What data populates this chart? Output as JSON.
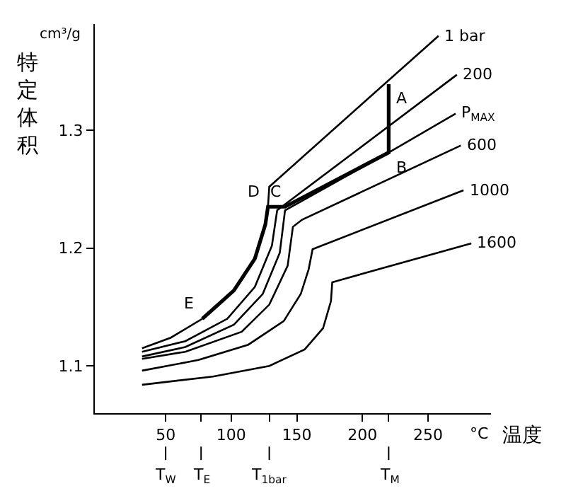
{
  "chart_data": {
    "type": "line",
    "xlabel": "温度",
    "ylabel": "特定体积",
    "xlim": [
      -4,
      298
    ],
    "ylim": [
      1.06,
      1.39
    ],
    "xticks": [
      50,
      {
        "value": 77,
        "label": null
      },
      100,
      {
        "value": 129,
        "label": null
      },
      150,
      200,
      {
        "value": 220,
        "label": null
      },
      250
    ],
    "yticks": [
      1.1,
      1.2,
      1.3
    ],
    "ref_lines": [
      {
        "axis": "x",
        "value": 50,
        "label": "T$_{W}$"
      },
      {
        "axis": "x",
        "value": 77,
        "label": "T$_{E}$"
      },
      {
        "axis": "x",
        "value": 129,
        "label": "T$_{1bar}$"
      },
      {
        "axis": "x",
        "value": 220,
        "label": "T$_{M}$"
      }
    ],
    "grid": false,
    "legend": false,
    "marker": "none",
    "line_style": "solid",
    "series": [
      {
        "name": "1 bar",
        "color": "#000000",
        "x": [
          32,
          54,
          78,
          102,
          118,
          126,
          128,
          129,
          258
        ],
        "values": [
          1.115,
          1.124,
          1.14,
          1.164,
          1.191,
          1.22,
          1.235,
          1.252,
          1.38
        ]
      },
      {
        "name": "200",
        "color": "#000000",
        "x": [
          32,
          65,
          97,
          118,
          131,
          135,
          272
        ],
        "values": [
          1.112,
          1.121,
          1.14,
          1.167,
          1.202,
          1.232,
          1.347
        ]
      },
      {
        "name": "P$_{MAX}$",
        "color": "#000000",
        "x": [
          32,
          65,
          102,
          124,
          137,
          141,
          220,
          271
        ],
        "values": [
          1.108,
          1.116,
          1.135,
          1.161,
          1.196,
          1.232,
          1.281,
          1.314
        ]
      },
      {
        "name": "600",
        "color": "#000000",
        "x": [
          32,
          65,
          108,
          129,
          143,
          147,
          154,
          275
        ],
        "values": [
          1.106,
          1.112,
          1.129,
          1.152,
          1.185,
          1.218,
          1.224,
          1.287
        ]
      },
      {
        "name": "1000",
        "color": "#000000",
        "x": [
          32,
          75,
          113,
          140,
          153,
          159,
          162,
          277
        ],
        "values": [
          1.096,
          1.105,
          1.118,
          1.138,
          1.161,
          1.182,
          1.199,
          1.249
        ]
      },
      {
        "name": "1600",
        "color": "#000000",
        "x": [
          32,
          86,
          129,
          156,
          170,
          176,
          177,
          283
        ],
        "values": [
          1.084,
          1.091,
          1.1,
          1.114,
          1.132,
          1.155,
          1.171,
          1.204
        ]
      },
      {
        "color": "#000000",
        "x": [
          78,
          102,
          118,
          126,
          128,
          141,
          220,
          220
        ],
        "values": [
          1.14,
          1.164,
          1.191,
          1.22,
          1.235,
          1.235,
          1.281,
          1.339
        ]
      }
    ],
    "annotations": [
      {
        "text": "A",
        "x": 220,
        "y": 1.339
      },
      {
        "text": "B",
        "x": 220,
        "y": 1.281
      },
      {
        "text": "C",
        "x": 141,
        "y": 1.235
      },
      {
        "text": "D",
        "x": 128,
        "y": 1.235
      },
      {
        "text": "E",
        "x": 78,
        "y": 1.14
      },
      "°C",
      "cm³/g"
    ]
  }
}
